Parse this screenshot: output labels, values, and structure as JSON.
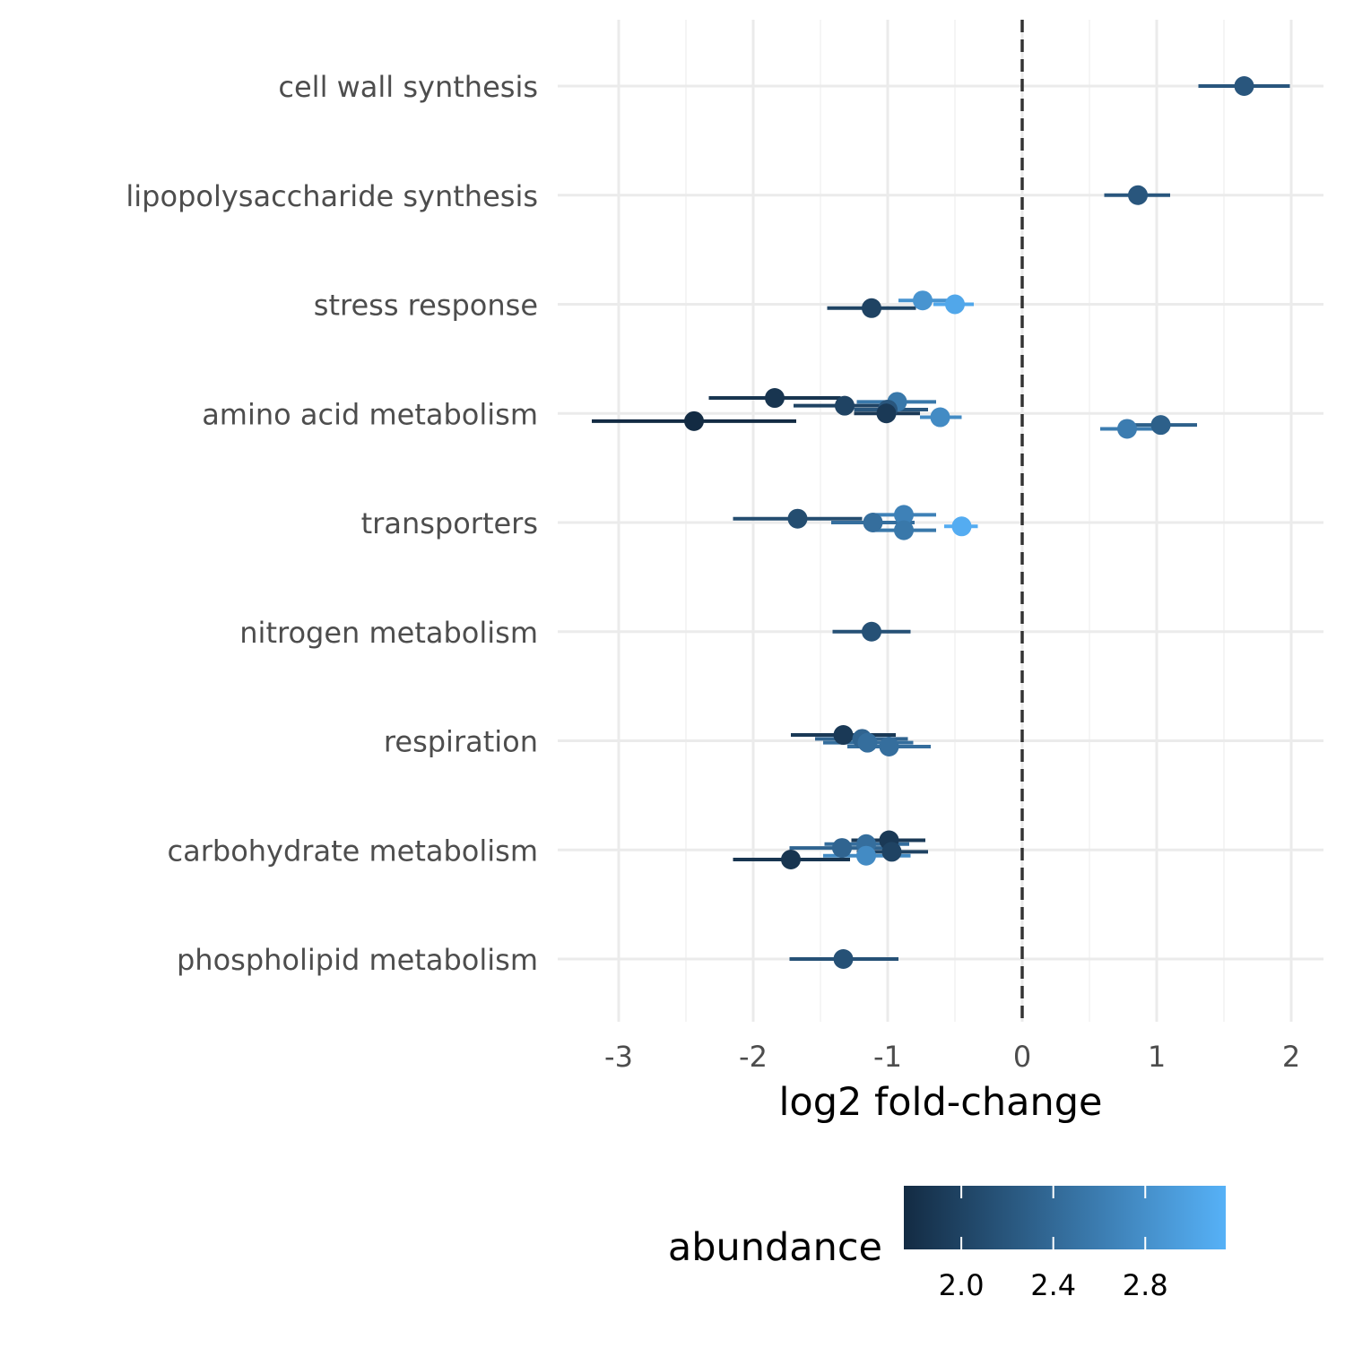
{
  "chart_data": {
    "type": "scatter",
    "subtype": "dot-and-whisker",
    "xlabel": "log2 fold-change",
    "ylabel": "",
    "xlim": [
      -3.45,
      2.25
    ],
    "x_ticks": [
      -3,
      -2,
      -1,
      0,
      1,
      2
    ],
    "x_tick_labels": [
      "-3",
      "-2",
      "-1",
      "0",
      "1",
      "2"
    ],
    "reference_line": {
      "x": 0,
      "style": "dashed"
    },
    "grid": true,
    "categories": [
      "cell wall synthesis",
      "lipopolysaccharide synthesis",
      "stress response",
      "amino acid metabolism",
      "transporters",
      "nitrogen metabolism",
      "respiration",
      "carbohydrate metabolism",
      "phospholipid metabolism"
    ],
    "points": [
      {
        "category": "cell wall synthesis",
        "x": 1.65,
        "lo": 1.31,
        "hi": 1.99,
        "abundance": 2.2
      },
      {
        "category": "lipopolysaccharide synthesis",
        "x": 0.86,
        "lo": 0.61,
        "hi": 1.1,
        "abundance": 2.2
      },
      {
        "category": "stress response",
        "x": -0.74,
        "lo": -0.92,
        "hi": -0.55,
        "abundance": 2.85
      },
      {
        "category": "stress response",
        "x": -0.5,
        "lo": -0.66,
        "hi": -0.36,
        "abundance": 3.05
      },
      {
        "category": "stress response",
        "x": -1.12,
        "lo": -1.45,
        "hi": -0.79,
        "abundance": 2.0
      },
      {
        "category": "amino acid metabolism",
        "x": -1.84,
        "lo": -2.33,
        "hi": -1.35,
        "abundance": 1.85
      },
      {
        "category": "amino acid metabolism",
        "x": -0.93,
        "lo": -1.23,
        "hi": -0.64,
        "abundance": 2.55
      },
      {
        "category": "amino acid metabolism",
        "x": -1.32,
        "lo": -1.7,
        "hi": -0.95,
        "abundance": 2.0
      },
      {
        "category": "amino acid metabolism",
        "x": -1.0,
        "lo": -1.25,
        "hi": -0.7,
        "abundance": 2.2
      },
      {
        "category": "amino acid metabolism",
        "x": -1.01,
        "lo": -1.25,
        "hi": -0.76,
        "abundance": 1.9
      },
      {
        "category": "amino acid metabolism",
        "x": -0.61,
        "lo": -0.76,
        "hi": -0.45,
        "abundance": 2.75
      },
      {
        "category": "amino acid metabolism",
        "x": -2.44,
        "lo": -3.2,
        "hi": -1.68,
        "abundance": 1.75
      },
      {
        "category": "amino acid metabolism",
        "x": 1.03,
        "lo": 0.77,
        "hi": 1.3,
        "abundance": 2.3
      },
      {
        "category": "amino acid metabolism",
        "x": 0.78,
        "lo": 0.58,
        "hi": 0.99,
        "abundance": 2.6
      },
      {
        "category": "transporters",
        "x": -0.88,
        "lo": -1.11,
        "hi": -0.64,
        "abundance": 2.65
      },
      {
        "category": "transporters",
        "x": -1.67,
        "lo": -2.15,
        "hi": -1.19,
        "abundance": 2.1
      },
      {
        "category": "transporters",
        "x": -1.11,
        "lo": -1.42,
        "hi": -0.8,
        "abundance": 2.45
      },
      {
        "category": "transporters",
        "x": -0.45,
        "lo": -0.58,
        "hi": -0.33,
        "abundance": 3.1
      },
      {
        "category": "transporters",
        "x": -0.88,
        "lo": -1.11,
        "hi": -0.64,
        "abundance": 2.55
      },
      {
        "category": "nitrogen metabolism",
        "x": -1.12,
        "lo": -1.41,
        "hi": -0.83,
        "abundance": 2.15
      },
      {
        "category": "respiration",
        "x": -1.33,
        "lo": -1.72,
        "hi": -0.94,
        "abundance": 1.9
      },
      {
        "category": "respiration",
        "x": -1.19,
        "lo": -1.54,
        "hi": -0.85,
        "abundance": 2.35
      },
      {
        "category": "respiration",
        "x": -1.15,
        "lo": -1.48,
        "hi": -0.81,
        "abundance": 2.45
      },
      {
        "category": "respiration",
        "x": -0.99,
        "lo": -1.3,
        "hi": -0.68,
        "abundance": 2.45
      },
      {
        "category": "carbohydrate metabolism",
        "x": -0.99,
        "lo": -1.27,
        "hi": -0.72,
        "abundance": 1.9
      },
      {
        "category": "carbohydrate metabolism",
        "x": -1.16,
        "lo": -1.47,
        "hi": -0.84,
        "abundance": 2.45
      },
      {
        "category": "carbohydrate metabolism",
        "x": -1.34,
        "lo": -1.73,
        "hi": -0.95,
        "abundance": 2.35
      },
      {
        "category": "carbohydrate metabolism",
        "x": -0.97,
        "lo": -1.23,
        "hi": -0.7,
        "abundance": 2.0
      },
      {
        "category": "carbohydrate metabolism",
        "x": -1.16,
        "lo": -1.48,
        "hi": -0.83,
        "abundance": 2.75
      },
      {
        "category": "carbohydrate metabolism",
        "x": -1.72,
        "lo": -2.15,
        "hi": -1.28,
        "abundance": 1.85
      },
      {
        "category": "phospholipid metabolism",
        "x": -1.33,
        "lo": -1.73,
        "hi": -0.92,
        "abundance": 2.15
      }
    ],
    "color_scale": {
      "title": "abundance",
      "min": 1.75,
      "max": 3.15,
      "low_color": "#132B43",
      "high_color": "#56B1F7",
      "ticks": [
        2.0,
        2.4,
        2.8
      ],
      "tick_labels": [
        "2.0",
        "2.4",
        "2.8"
      ]
    },
    "legend_position": "bottom"
  }
}
